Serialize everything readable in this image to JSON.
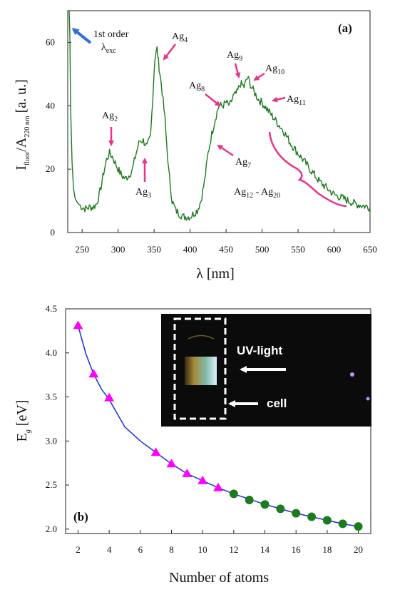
{
  "chart_data": [
    {
      "type": "line",
      "panel_label": "(a)",
      "xlabel": "λ [nm]",
      "ylabel": {
        "base_1": "I",
        "sub_1": "fluor",
        "mid": "/A",
        "sub_2": "220 nm",
        "unit": "[a. u.]"
      },
      "xlim": [
        230,
        650
      ],
      "ylim": [
        0,
        70
      ],
      "xticks": [
        250,
        300,
        350,
        400,
        450,
        500,
        550,
        600,
        650
      ],
      "yticks": [
        0,
        20,
        40,
        60
      ],
      "series_color": "#1f7a1f",
      "series": [
        {
          "x": [
            232,
            233,
            234,
            236,
            238,
            240,
            242,
            245,
            250,
            255,
            260,
            265,
            270,
            275,
            280,
            284,
            288,
            292,
            296,
            300,
            305,
            310,
            315,
            320,
            325,
            330,
            335,
            340,
            345,
            348,
            351,
            354,
            357,
            360,
            365,
            370,
            375,
            380,
            385,
            390,
            395,
            400,
            405,
            410,
            415,
            420,
            425,
            430,
            435,
            440,
            445,
            450,
            455,
            460,
            465,
            470,
            475,
            480,
            485,
            490,
            495,
            500,
            510,
            520,
            530,
            540,
            550,
            560,
            570,
            580,
            590,
            600,
            610,
            620,
            630,
            640,
            650
          ],
          "y": [
            70,
            62,
            40,
            22,
            14,
            11,
            10,
            9,
            8,
            7.5,
            8,
            8,
            9,
            13,
            19,
            23,
            25,
            24,
            22,
            20,
            18,
            17,
            18,
            20,
            25,
            29,
            29,
            27,
            30,
            42,
            55,
            58,
            52,
            47,
            36,
            20,
            10,
            7,
            6,
            5,
            5,
            5,
            6,
            7,
            10,
            16,
            25,
            31,
            36,
            40,
            40,
            41,
            40,
            43,
            44,
            47,
            46,
            49,
            46,
            44,
            42,
            41,
            38,
            35,
            32,
            28,
            25,
            22,
            19,
            16,
            14,
            12,
            11,
            10,
            9,
            8.5,
            8
          ]
        }
      ],
      "annotations": [
        {
          "lines": [
            "1st order",
            "λ",
            "exc"
          ],
          "base": "1st order λ",
          "sub": "exc"
        },
        {
          "base": "Ag",
          "sub": "2"
        },
        {
          "base": "Ag",
          "sub": "3"
        },
        {
          "base": "Ag",
          "sub": "4"
        },
        {
          "base": "Ag",
          "sub": "7"
        },
        {
          "base": "Ag",
          "sub": "8"
        },
        {
          "base": "Ag",
          "sub": "9"
        },
        {
          "base": "Ag",
          "sub": "10"
        },
        {
          "base": "Ag",
          "sub": "11"
        },
        {
          "base": "Ag",
          "sub": "12",
          "base2": " - Ag",
          "sub2": "20"
        }
      ],
      "annotation_arrow_color": "#e8338a",
      "lambda_arrow_color": "#2f6fd6"
    },
    {
      "type": "scatter",
      "panel_label": "(b)",
      "xlabel": "Number of atoms",
      "ylabel": {
        "base": "E",
        "sub": "g",
        "unit": "[eV]"
      },
      "xlim": [
        1.2,
        20.8
      ],
      "ylim": [
        1.95,
        4.5
      ],
      "xticks": [
        2,
        4,
        6,
        8,
        10,
        12,
        14,
        16,
        18,
        20
      ],
      "yticks": [
        2.0,
        2.5,
        3.0,
        3.5,
        4.0,
        4.5
      ],
      "series": [
        {
          "marker": "triangle",
          "color": "#ff00ff",
          "x": [
            2,
            3,
            4,
            7,
            8,
            9,
            10,
            11
          ],
          "y": [
            4.31,
            3.76,
            3.49,
            2.87,
            2.74,
            2.63,
            2.55,
            2.47
          ]
        },
        {
          "marker": "circle",
          "color": "#1e7a1e",
          "x": [
            12,
            13,
            14,
            15,
            16,
            17,
            18,
            19,
            20
          ],
          "y": [
            2.4,
            2.33,
            2.28,
            2.23,
            2.18,
            2.14,
            2.1,
            2.06,
            2.03
          ]
        }
      ],
      "fit_line": {
        "color": "#1a2ee0",
        "x": [
          2,
          2.5,
          3,
          3.5,
          4,
          5,
          6,
          7,
          8,
          9,
          10,
          11,
          12,
          13,
          14,
          15,
          16,
          17,
          18,
          19,
          20
        ],
        "y": [
          4.31,
          3.99,
          3.76,
          3.59,
          3.47,
          3.16,
          3.0,
          2.87,
          2.74,
          2.63,
          2.55,
          2.47,
          2.4,
          2.34,
          2.28,
          2.23,
          2.18,
          2.14,
          2.1,
          2.06,
          2.03
        ]
      },
      "inset": {
        "label_uv": "UV-light",
        "label_cell": "cell",
        "background": "#0b0b0b"
      }
    }
  ]
}
